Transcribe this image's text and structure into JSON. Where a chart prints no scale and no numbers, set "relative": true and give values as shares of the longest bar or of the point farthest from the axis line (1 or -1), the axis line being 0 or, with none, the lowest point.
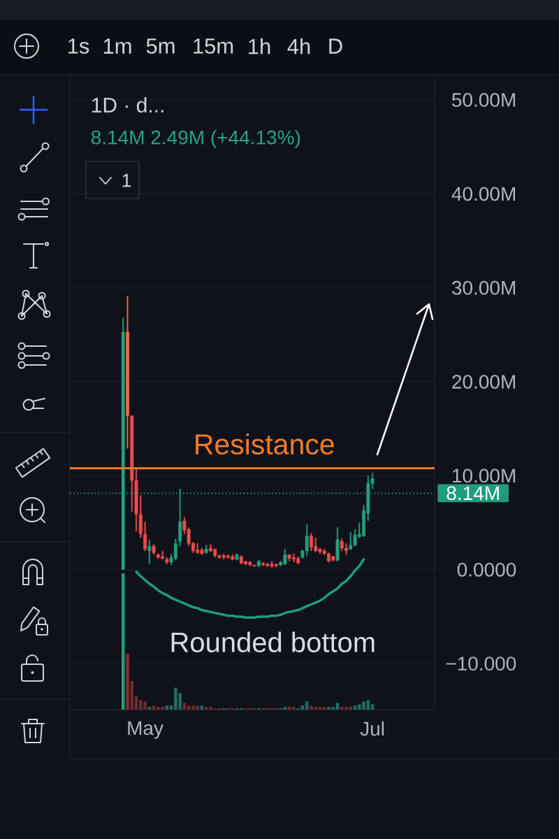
{
  "chart_data": [
    {
      "type": "candlestick",
      "title": "1D · d...",
      "subtitle": "8.14M 2.49M (+44.13%)",
      "categories": [
        null,
        null,
        null,
        null,
        null,
        "May",
        null,
        null,
        null,
        null,
        null,
        null,
        null,
        null,
        null,
        null,
        null,
        null,
        null,
        null,
        null,
        null,
        null,
        null,
        null,
        null,
        null,
        null,
        null,
        null,
        null,
        null,
        null,
        null,
        null,
        null,
        null,
        null,
        null,
        null,
        null,
        null,
        null,
        null,
        null,
        null,
        null,
        null,
        null,
        null,
        null,
        null,
        null,
        null,
        null,
        null,
        null,
        "Jul"
      ],
      "ohlc": [
        [
          0.0,
          26.8,
          0.0,
          25.3
        ],
        [
          25.3,
          29.1,
          12.9,
          16.4
        ],
        [
          16.4,
          16.4,
          6.2,
          9.5
        ],
        [
          9.5,
          10.7,
          4.1,
          5.9
        ],
        [
          5.9,
          7.9,
          3.4,
          3.8
        ],
        [
          3.8,
          5.1,
          2.0,
          2.2
        ],
        [
          2.0,
          3.2,
          0.6,
          2.5
        ],
        [
          2.5,
          2.7,
          1.6,
          1.8
        ],
        [
          1.6,
          1.7,
          1.2,
          1.3
        ],
        [
          1.4,
          2.0,
          1.1,
          1.2
        ],
        [
          1.1,
          1.3,
          0.6,
          0.8
        ],
        [
          0.8,
          1.7,
          0.5,
          1.3
        ],
        [
          1.2,
          3.3,
          1.0,
          2.8
        ],
        [
          3.0,
          8.6,
          2.5,
          5.1
        ],
        [
          5.2,
          5.6,
          3.8,
          4.2
        ],
        [
          4.3,
          4.5,
          2.5,
          2.8
        ],
        [
          2.8,
          2.9,
          1.8,
          2.0
        ],
        [
          2.1,
          2.8,
          1.7,
          1.8
        ],
        [
          2.1,
          2.3,
          1.6,
          1.7
        ],
        [
          1.8,
          2.6,
          1.7,
          2.2
        ],
        [
          2.3,
          2.7,
          1.9,
          2.0
        ],
        [
          2.2,
          2.2,
          1.3,
          1.5
        ],
        [
          1.5,
          1.6,
          1.2,
          1.3
        ],
        [
          1.5,
          1.7,
          1.1,
          1.3
        ],
        [
          1.5,
          1.6,
          1.2,
          1.3
        ],
        [
          1.4,
          1.6,
          1.0,
          1.1
        ],
        [
          1.1,
          1.7,
          1.0,
          1.6
        ],
        [
          1.4,
          1.5,
          0.6,
          0.7
        ],
        [
          0.9,
          0.9,
          0.5,
          0.6
        ],
        [
          0.8,
          0.9,
          0.4,
          0.5
        ],
        [
          0.5,
          0.5,
          0.3,
          0.4
        ],
        [
          0.4,
          1.0,
          0.3,
          0.9
        ],
        [
          0.7,
          0.8,
          0.4,
          0.5
        ],
        [
          0.6,
          0.7,
          0.3,
          0.4
        ],
        [
          0.6,
          0.9,
          0.2,
          0.4
        ],
        [
          0.6,
          0.6,
          0.3,
          0.4
        ],
        [
          0.5,
          0.9,
          0.4,
          0.8
        ],
        [
          0.6,
          2.2,
          0.5,
          1.6
        ],
        [
          1.6,
          1.6,
          0.9,
          1.2
        ],
        [
          1.3,
          1.7,
          0.8,
          1.1
        ],
        [
          1.2,
          1.4,
          0.6,
          0.7
        ],
        [
          1.3,
          2.1,
          1.2,
          2.0
        ],
        [
          2.0,
          4.8,
          1.5,
          3.6
        ],
        [
          3.6,
          3.9,
          2.0,
          2.4
        ],
        [
          2.5,
          3.4,
          1.9,
          2.0
        ],
        [
          2.2,
          2.3,
          1.7,
          1.9
        ],
        [
          2.0,
          2.2,
          1.6,
          1.7
        ],
        [
          1.7,
          1.8,
          0.8,
          0.9
        ],
        [
          1.4,
          1.5,
          0.9,
          1.0
        ],
        [
          1.0,
          4.5,
          0.9,
          3.2
        ],
        [
          3.0,
          3.3,
          2.0,
          2.3
        ],
        [
          2.3,
          2.8,
          1.6,
          2.0
        ],
        [
          2.2,
          4.0,
          2.1,
          2.6
        ],
        [
          2.6,
          4.3,
          2.5,
          3.7
        ],
        [
          3.5,
          5.0,
          3.4,
          3.8
        ],
        [
          3.6,
          6.9,
          3.5,
          6.3
        ],
        [
          6.0,
          10.0,
          5.2,
          9.2
        ],
        [
          9.2,
          10.3,
          8.6,
          9.7
        ]
      ],
      "colors": [
        "#22a07a",
        "#f26a3d",
        "#ef4b4b",
        "#ef4b4b",
        "#ef4b4b",
        "#ef4b4b",
        "#22a07a",
        "#ef4b4b",
        "#ef4b4b",
        "#ef4b4b",
        "#ef4b4b",
        "#22a07a",
        "#22a07a",
        "#22a07a",
        "#ef4b4b",
        "#ef4b4b",
        "#ef4b4b",
        "#ef4b4b",
        "#ef4b4b",
        "#22a07a",
        "#ef4b4b",
        "#ef4b4b",
        "#ef4b4b",
        "#ef4b4b",
        "#ef4b4b",
        "#ef4b4b",
        "#22a07a",
        "#ef4b4b",
        "#ef4b4b",
        "#ef4b4b",
        "#ef4b4b",
        "#22a07a",
        "#ef4b4b",
        "#ef4b4b",
        "#ef4b4b",
        "#ef4b4b",
        "#22a07a",
        "#22a07a",
        "#ef4b4b",
        "#ef4b4b",
        "#ef4b4b",
        "#22a07a",
        "#22a07a",
        "#ef4b4b",
        "#ef4b4b",
        "#ef4b4b",
        "#ef4b4b",
        "#ef4b4b",
        "#ef4b4b",
        "#22a07a",
        "#ef4b4b",
        "#ef4b4b",
        "#22a07a",
        "#22a07a",
        "#22a07a",
        "#22a07a",
        "#22a07a",
        "#22a07a"
      ],
      "series": [
        {
          "name": "Rounded bottom",
          "type": "line",
          "color": "#1f9e7b",
          "values": [
            null,
            null,
            null,
            -0.2,
            -0.7,
            -1.1,
            -1.5,
            -1.8,
            -2.2,
            -2.5,
            -2.7,
            -3.0,
            -3.2,
            -3.4,
            -3.6,
            -3.8,
            -4.0,
            -4.1,
            -4.3,
            -4.4,
            -4.5,
            -4.6,
            -4.7,
            -4.8,
            -4.9,
            -4.9,
            -5.0,
            -5.0,
            -5.1,
            -5.1,
            -5.1,
            -5.0,
            -5.0,
            -5.0,
            -4.9,
            -4.9,
            -4.8,
            -4.6,
            -4.5,
            -4.4,
            -4.3,
            -4.1,
            -3.9,
            -3.7,
            -3.5,
            -3.3,
            -3.0,
            -2.6,
            -2.3,
            -2.0,
            -1.5,
            -1.2,
            -0.7,
            -0.1,
            0.4,
            1.1,
            null,
            null
          ]
        }
      ],
      "ylim": [
        -14.9,
        52.6
      ],
      "yticks": [
        {
          "value": 50,
          "label": "50.00M"
        },
        {
          "value": 40,
          "label": "40.00M"
        },
        {
          "value": 30,
          "label": "30.00M"
        },
        {
          "value": 20,
          "label": "20.00M"
        },
        {
          "value": 10,
          "label": "10.00M"
        },
        {
          "value": 0,
          "label": "0.0000"
        },
        {
          "value": -10,
          "label": "−10.000"
        }
      ],
      "grid": "y",
      "ref_lines": [
        {
          "axis": "y",
          "value": 10.8,
          "label": "Resistance",
          "color": "#f47b2a",
          "line_style": "solid"
        },
        {
          "axis": "y",
          "value": 8.14,
          "label": "8.14M",
          "color": "#1f9c7c",
          "line_style": "dotted"
        }
      ],
      "annotations": [
        "1s",
        "1m",
        "5m",
        "15m",
        "1h",
        "4h",
        "D",
        "1"
      ]
    },
    {
      "type": "bar",
      "relative": true,
      "categories": [
        null,
        null,
        null,
        null,
        null,
        null,
        null,
        null,
        null,
        null,
        null,
        null,
        null,
        null,
        null,
        null,
        null,
        null,
        null,
        null,
        null,
        null,
        null,
        null,
        null,
        null,
        null,
        null,
        null,
        null,
        null,
        null,
        null,
        null,
        null,
        null,
        null,
        null,
        null,
        null,
        null,
        null,
        null,
        null,
        null,
        null,
        null,
        null,
        null,
        null,
        null,
        null,
        null,
        null,
        null,
        null,
        null,
        null
      ],
      "values": [
        1.0,
        0.41,
        0.21,
        0.1,
        0.07,
        0.06,
        0.02,
        0.03,
        0.02,
        0.02,
        0.03,
        0.03,
        0.16,
        0.12,
        0.05,
        0.03,
        0.03,
        0.03,
        0.03,
        0.02,
        0.02,
        0.01,
        0.01,
        0.01,
        0.01,
        0.01,
        0.01,
        0.01,
        0.01,
        0.01,
        0.01,
        0.01,
        0.01,
        0.01,
        0.01,
        0.01,
        0.01,
        0.02,
        0.02,
        0.02,
        0.01,
        0.03,
        0.06,
        0.03,
        0.02,
        0.02,
        0.02,
        0.02,
        0.02,
        0.05,
        0.02,
        0.02,
        0.02,
        0.03,
        0.04,
        0.06,
        0.07,
        0.04
      ],
      "colors": [
        "#22a07a",
        "#8a3030",
        "#722b2f",
        "#722b2f",
        "#722b2f",
        "#722b2f",
        "#1e6f60",
        "#722b2f",
        "#722b2f",
        "#722b2f",
        "#1e6f60",
        "#1e6f60",
        "#1e6f60",
        "#1e6f60",
        "#722b2f",
        "#722b2f",
        "#722b2f",
        "#722b2f",
        "#1e6f60",
        "#722b2f",
        "#722b2f",
        "#722b2f",
        "#722b2f",
        "#1e6f60",
        "#722b2f",
        "#722b2f",
        "#1e6f60",
        "#1e6f60",
        "#722b2f",
        "#722b2f",
        "#722b2f",
        "#1e6f60",
        "#722b2f",
        "#722b2f",
        "#722b2f",
        "#722b2f",
        "#1e6f60",
        "#1e6f60",
        "#722b2f",
        "#722b2f",
        "#1e6f60",
        "#1e6f60",
        "#1e6f60",
        "#722b2f",
        "#722b2f",
        "#722b2f",
        "#722b2f",
        "#1e6f60",
        "#1e6f60",
        "#1e6f60",
        "#722b2f",
        "#722b2f",
        "#722b2f",
        "#1e6f60",
        "#1e6f60",
        "#1e6f60",
        "#1e6f60",
        "#1e6f60"
      ]
    }
  ]
}
